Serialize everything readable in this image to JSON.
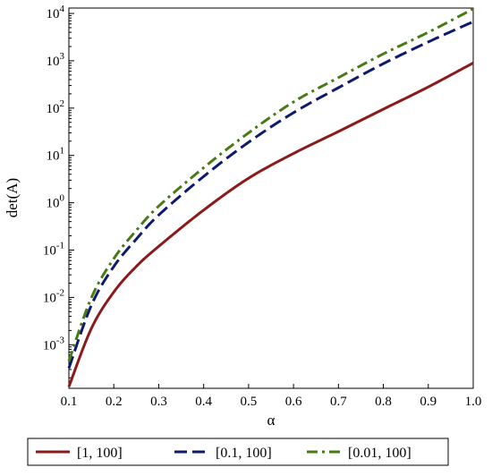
{
  "chart_data": {
    "type": "line",
    "xlabel": "α",
    "ylabel": "det(A)",
    "xlim": [
      0.1,
      1.0
    ],
    "ylim": [
      0.00012,
      13000
    ],
    "y_scale": "log",
    "grid": false,
    "legend_position": "bottom",
    "x_ticks": [
      "0.1",
      "0.2",
      "0.3",
      "0.4",
      "0.5",
      "0.6",
      "0.7",
      "0.8",
      "0.9",
      "1.0"
    ],
    "y_ticks": [
      {
        "value": 0.001,
        "base": "10",
        "exp": "-3"
      },
      {
        "value": 0.01,
        "base": "10",
        "exp": "-2"
      },
      {
        "value": 0.1,
        "base": "10",
        "exp": "-1"
      },
      {
        "value": 1,
        "base": "10",
        "exp": "0"
      },
      {
        "value": 10,
        "base": "10",
        "exp": "1"
      },
      {
        "value": 100,
        "base": "10",
        "exp": "2"
      },
      {
        "value": 1000,
        "base": "10",
        "exp": "3"
      },
      {
        "value": 10000,
        "base": "10",
        "exp": "4"
      }
    ],
    "x": [
      0.1,
      0.15,
      0.2,
      0.25,
      0.3,
      0.4,
      0.5,
      0.6,
      0.7,
      0.8,
      0.9,
      1.0
    ],
    "series": [
      {
        "name": "[1, 100]",
        "color": "#8b1a1a",
        "dash": "solid",
        "values": [
          0.00013,
          0.0022,
          0.013,
          0.045,
          0.12,
          0.7,
          3.3,
          11,
          32,
          95,
          280,
          900
        ]
      },
      {
        "name": "[0.1, 100]",
        "color": "#0d1a6e",
        "dash": "dash",
        "values": [
          0.00032,
          0.0068,
          0.045,
          0.17,
          0.55,
          3.6,
          19,
          80,
          270,
          870,
          2500,
          6700
        ]
      },
      {
        "name": "[0.01, 100]",
        "color": "#4a7a16",
        "dash": "dashdot",
        "values": [
          0.00045,
          0.0098,
          0.066,
          0.26,
          0.85,
          5.5,
          30,
          135,
          440,
          1400,
          4000,
          12500
        ]
      }
    ]
  }
}
